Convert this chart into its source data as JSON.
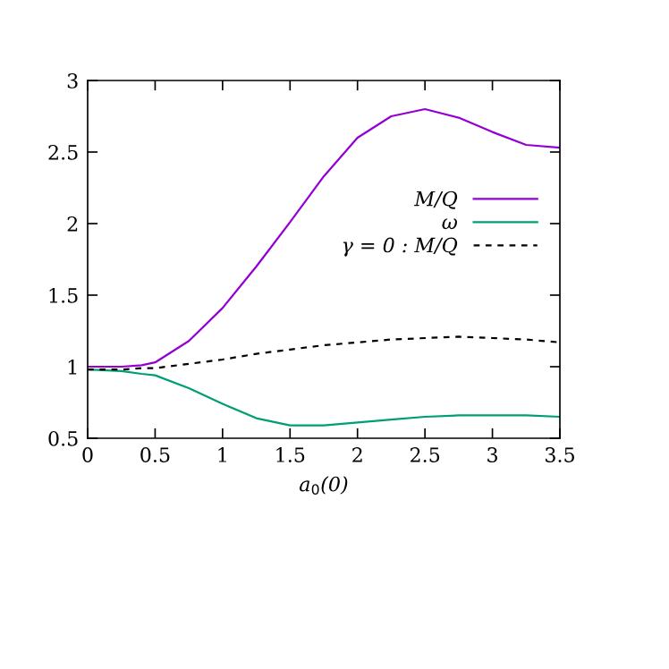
{
  "chart_data": {
    "type": "line",
    "xlabel": "a$_{0}$(0)",
    "x": [
      0,
      0.25,
      0.4,
      0.5,
      0.75,
      1.0,
      1.25,
      1.5,
      1.75,
      2.0,
      2.25,
      2.5,
      2.75,
      3.0,
      3.25,
      3.5
    ],
    "series": [
      {
        "name": "M/Q",
        "color": "#9400d3",
        "values": [
          1.0,
          1.0,
          1.01,
          1.03,
          1.18,
          1.41,
          1.7,
          2.01,
          2.33,
          2.6,
          2.75,
          2.8,
          2.74,
          2.64,
          2.55,
          2.53
        ]
      },
      {
        "name": "ω",
        "color": "#009e73",
        "values": [
          0.98,
          0.97,
          0.95,
          0.94,
          0.85,
          0.74,
          0.64,
          0.59,
          0.59,
          0.61,
          0.63,
          0.65,
          0.66,
          0.66,
          0.66,
          0.65
        ]
      },
      {
        "name": "γ = 0 : M/Q",
        "color": "#000000",
        "line_style": "dashed",
        "values": [
          0.98,
          0.98,
          0.99,
          0.99,
          1.02,
          1.05,
          1.09,
          1.12,
          1.15,
          1.17,
          1.19,
          1.2,
          1.21,
          1.2,
          1.19,
          1.17
        ]
      }
    ],
    "xlim": [
      0,
      3.5
    ],
    "ylim": [
      0.5,
      3
    ],
    "xticks": [
      0,
      0.5,
      1,
      1.5,
      2,
      2.5,
      3,
      3.5
    ],
    "yticks": [
      0.5,
      1,
      1.5,
      2,
      2.5,
      3
    ],
    "grid": false,
    "legend": "right",
    "marker": "none"
  }
}
